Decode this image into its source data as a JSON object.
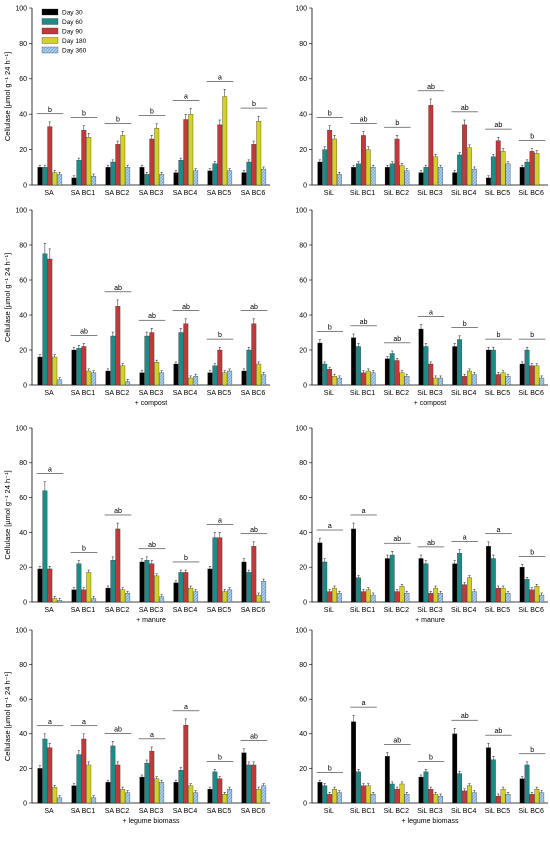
{
  "legend": {
    "series": [
      "Day 30",
      "Day 60",
      "Day 90",
      "Day 180",
      "Day 360"
    ],
    "colors": [
      "#000000",
      "#1f8a87",
      "#c0393b",
      "#d4cf2a",
      "#a9cdeb"
    ]
  },
  "chart_data": [
    {
      "type": "bar",
      "ylabel": "Cellulase [µmol g⁻¹ 24 h⁻¹]",
      "xlabel": "",
      "ylim": [
        0,
        100
      ],
      "categories": [
        "SA",
        "SA BC1",
        "SA BC2",
        "SA BC3",
        "SA BC4",
        "SA BC5",
        "SA BC6"
      ],
      "letters": [
        "b",
        "b",
        "b",
        "b",
        "a",
        "a",
        "b"
      ],
      "series": [
        {
          "name": "Day 30",
          "values": [
            10,
            4,
            10,
            10,
            7,
            8,
            7
          ]
        },
        {
          "name": "Day 60",
          "values": [
            10,
            14,
            13,
            6,
            14,
            12,
            13
          ]
        },
        {
          "name": "Day 90",
          "values": [
            33,
            31,
            23,
            26,
            37,
            34,
            23
          ]
        },
        {
          "name": "Day 180",
          "values": [
            7,
            27,
            28,
            32,
            40,
            50,
            36
          ]
        },
        {
          "name": "Day 360",
          "values": [
            6,
            5,
            10,
            6,
            8,
            8,
            9
          ]
        }
      ]
    },
    {
      "type": "bar",
      "ylabel": "",
      "xlabel": "",
      "ylim": [
        0,
        100
      ],
      "categories": [
        "SiL",
        "SiL BC1",
        "SiL BC2",
        "SiL BC3",
        "SiL BC4",
        "SiL BC5",
        "SiL BC6"
      ],
      "letters": [
        "b",
        "ab",
        "b",
        "ab",
        "ab",
        "ab",
        "b"
      ],
      "series": [
        {
          "name": "Day 30",
          "values": [
            13,
            10,
            10,
            7,
            7,
            4,
            10
          ]
        },
        {
          "name": "Day 60",
          "values": [
            20,
            12,
            12,
            10,
            17,
            16,
            13
          ]
        },
        {
          "name": "Day 90",
          "values": [
            31,
            28,
            26,
            45,
            34,
            25,
            19
          ]
        },
        {
          "name": "Day 180",
          "values": [
            26,
            20,
            11,
            16,
            21,
            19,
            18
          ]
        },
        {
          "name": "Day 360",
          "values": [
            6,
            10,
            8,
            10,
            9,
            12,
            0
          ]
        }
      ]
    },
    {
      "type": "bar",
      "ylabel": "Cellulase [µmol g⁻¹ 24 h⁻¹]",
      "xlabel": "+ compost",
      "ylim": [
        0,
        100
      ],
      "categories": [
        "SA",
        "SA BC1",
        "SA BC2",
        "SA BC3",
        "SA BC4",
        "SA BC5",
        "SA BC6"
      ],
      "letters": [
        "",
        "ab",
        "ab",
        "ab",
        "ab",
        "b",
        "ab"
      ],
      "series": [
        {
          "name": "Day 30",
          "values": [
            16,
            20,
            8,
            7,
            12,
            7,
            8
          ]
        },
        {
          "name": "Day 60",
          "values": [
            75,
            21,
            28,
            28,
            30,
            11,
            20
          ]
        },
        {
          "name": "Day 90",
          "values": [
            72,
            22,
            45,
            30,
            35,
            20,
            35
          ]
        },
        {
          "name": "Day 180",
          "values": [
            16,
            8,
            11,
            13,
            4,
            7,
            12
          ]
        },
        {
          "name": "Day 360",
          "values": [
            3,
            7,
            2,
            7,
            5,
            8,
            6
          ]
        }
      ]
    },
    {
      "type": "bar",
      "ylabel": "",
      "xlabel": "+ compost",
      "ylim": [
        0,
        100
      ],
      "categories": [
        "SiL",
        "SiL BC1",
        "SiL BC2",
        "SiL BC3",
        "SiL BC4",
        "SiL BC5",
        "SiL BC6"
      ],
      "letters": [
        "b",
        "ab",
        "ab",
        "a",
        "b",
        "b",
        "b"
      ],
      "series": [
        {
          "name": "Day 30",
          "values": [
            24,
            27,
            15,
            32,
            22,
            20,
            12
          ]
        },
        {
          "name": "Day 60",
          "values": [
            12,
            22,
            18,
            22,
            26,
            20,
            20
          ]
        },
        {
          "name": "Day 90",
          "values": [
            9,
            7,
            14,
            12,
            5,
            6,
            11
          ]
        },
        {
          "name": "Day 180",
          "values": [
            5,
            8,
            7,
            4,
            8,
            7,
            11
          ]
        },
        {
          "name": "Day 360",
          "values": [
            4,
            7,
            5,
            4,
            6,
            5,
            4
          ]
        }
      ]
    },
    {
      "type": "bar",
      "ylabel": "Cellulase [µmol g⁻¹ 24 h⁻¹]",
      "xlabel": "+ manure",
      "ylim": [
        0,
        100
      ],
      "categories": [
        "SA",
        "SA BC1",
        "SA BC2",
        "SA BC3",
        "SA BC4",
        "SA BC5",
        "SA BC6"
      ],
      "letters": [
        "a",
        "b",
        "ab",
        "ab",
        "b",
        "a",
        "ab"
      ],
      "series": [
        {
          "name": "Day 30",
          "values": [
            19,
            7,
            8,
            23,
            11,
            19,
            23
          ]
        },
        {
          "name": "Day 60",
          "values": [
            64,
            22,
            24,
            24,
            17,
            37,
            17
          ]
        },
        {
          "name": "Day 90",
          "values": [
            19,
            7,
            42,
            22,
            17,
            37,
            32
          ]
        },
        {
          "name": "Day 180",
          "values": [
            2,
            17,
            7,
            15,
            8,
            6,
            4
          ]
        },
        {
          "name": "Day 360",
          "values": [
            1,
            2,
            5,
            3,
            6,
            7,
            12
          ]
        }
      ]
    },
    {
      "type": "bar",
      "ylabel": "",
      "xlabel": "+ manure",
      "ylim": [
        0,
        100
      ],
      "categories": [
        "SiL",
        "SiL BC1",
        "SiL BC2",
        "SiL BC3",
        "SiL BC4",
        "SiL BC5",
        "SiL BC6"
      ],
      "letters": [
        "a",
        "a",
        "ab",
        "ab",
        "a",
        "a",
        "b"
      ],
      "series": [
        {
          "name": "Day 30",
          "values": [
            34,
            42,
            25,
            25,
            22,
            32,
            20
          ]
        },
        {
          "name": "Day 60",
          "values": [
            23,
            14,
            27,
            22,
            28,
            25,
            13
          ]
        },
        {
          "name": "Day 90",
          "values": [
            6,
            6,
            6,
            5,
            10,
            8,
            7
          ]
        },
        {
          "name": "Day 180",
          "values": [
            8,
            7,
            9,
            8,
            14,
            8,
            9
          ]
        },
        {
          "name": "Day 360",
          "values": [
            5,
            4,
            5,
            5,
            6,
            5,
            4
          ]
        }
      ]
    },
    {
      "type": "bar",
      "ylabel": "Cellulase [µmol g⁻¹ 24 h⁻¹]",
      "xlabel": "+ legume biomass",
      "ylim": [
        0,
        100
      ],
      "categories": [
        "SA",
        "SA BC1",
        "SA BC2",
        "SA BC3",
        "SA BC4",
        "SA BC5",
        "SA BC6"
      ],
      "letters": [
        "a",
        "a",
        "ab",
        "a",
        "a",
        "b",
        "ab"
      ],
      "series": [
        {
          "name": "Day 30",
          "values": [
            20,
            10,
            12,
            15,
            12,
            8,
            29
          ]
        },
        {
          "name": "Day 60",
          "values": [
            37,
            28,
            33,
            23,
            19,
            18,
            22
          ]
        },
        {
          "name": "Day 90",
          "values": [
            32,
            37,
            22,
            30,
            45,
            14,
            22
          ]
        },
        {
          "name": "Day 180",
          "values": [
            9,
            22,
            8,
            14,
            10,
            5,
            8
          ]
        },
        {
          "name": "Day 360",
          "values": [
            3,
            3,
            6,
            12,
            6,
            8,
            10
          ]
        }
      ]
    },
    {
      "type": "bar",
      "ylabel": "",
      "xlabel": "+ legume biomass",
      "ylim": [
        0,
        100
      ],
      "categories": [
        "SiL",
        "SiL BC1",
        "SiL BC2",
        "SiL BC3",
        "SiL BC4",
        "SiL BC5",
        "SiL BC6"
      ],
      "letters": [
        "b",
        "a",
        "ab",
        "b",
        "ab",
        "ab",
        "b"
      ],
      "series": [
        {
          "name": "Day 30",
          "values": [
            12,
            47,
            27,
            15,
            40,
            32,
            14
          ]
        },
        {
          "name": "Day 60",
          "values": [
            10,
            18,
            11,
            18,
            17,
            25,
            22
          ]
        },
        {
          "name": "Day 90",
          "values": [
            5,
            10,
            8,
            8,
            7,
            4,
            5
          ]
        },
        {
          "name": "Day 180",
          "values": [
            8,
            10,
            11,
            5,
            10,
            8,
            8
          ]
        },
        {
          "name": "Day 360",
          "values": [
            6,
            5,
            5,
            4,
            6,
            5,
            6
          ]
        }
      ]
    }
  ]
}
